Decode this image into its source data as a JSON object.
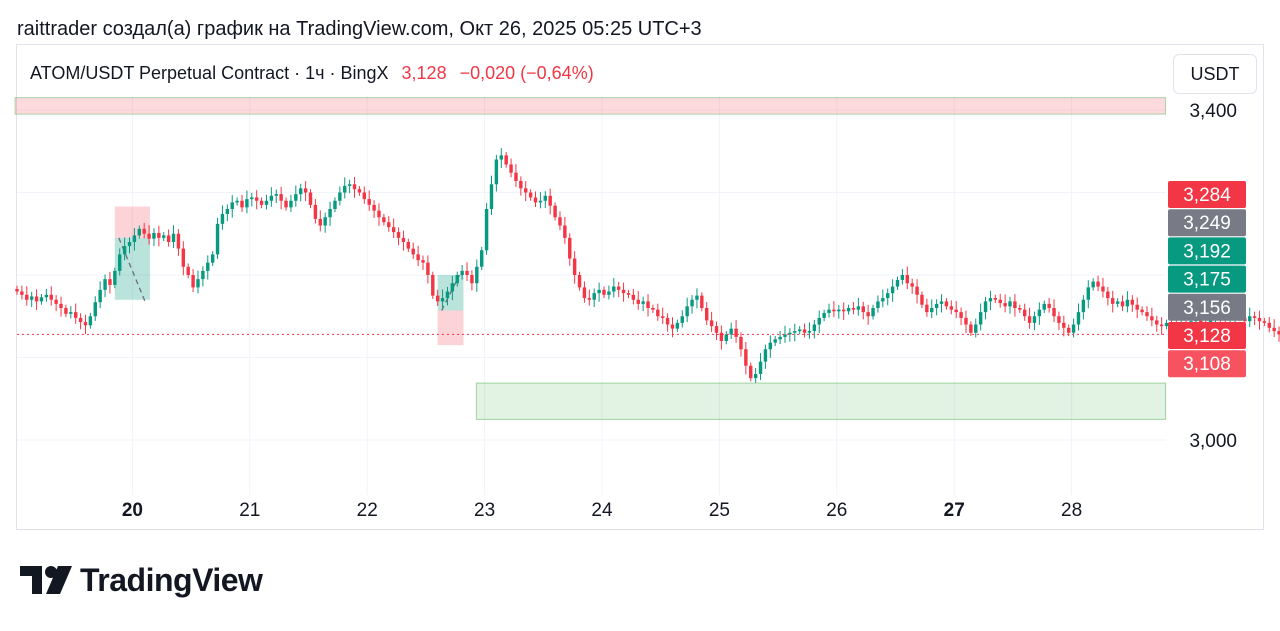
{
  "header": {
    "caption": "raittrader создал(а) график на TradingView.com, Окт 26, 2025 05:25 UTC+3"
  },
  "legend": {
    "symbol": "ATOM/USDT Perpetual Contract · 1ч · BingX",
    "last": "3,128",
    "change": "−0,020 (−0,64%)"
  },
  "currency_button": "USDT",
  "brand": {
    "name": "TradingView"
  },
  "colors": {
    "up": "#089981",
    "down": "#f23645",
    "grid": "#f0f3fa",
    "neutral": "#6a6d78"
  },
  "chart_data": {
    "type": "candlestick",
    "x_ticks": [
      "20",
      "21",
      "22",
      "23",
      "24",
      "25",
      "26",
      "27",
      "28"
    ],
    "x_ticks_bold": [
      "20",
      "27"
    ],
    "y_ticks": [
      "3,400",
      "3,000"
    ],
    "ylim": [
      2.93,
      3.48
    ],
    "price_tags": [
      {
        "value": 3.284,
        "label": "3,284",
        "color": "#f23645"
      },
      {
        "value": 3.249,
        "label": "3,249",
        "color": "#787b86"
      },
      {
        "value": 3.192,
        "label": "3,192",
        "color": "#089981"
      },
      {
        "value": 3.175,
        "label": "3,175",
        "color": "#089981"
      },
      {
        "value": 3.156,
        "label": "3,156",
        "color": "#787b86"
      },
      {
        "value": 3.128,
        "label": "3,128",
        "color": "#f23645"
      },
      {
        "value": 3.108,
        "label": "3,108",
        "color": "#f7525f"
      }
    ],
    "zones": [
      {
        "name": "supply-zone",
        "from_day": 19.0,
        "to_day": 28.8,
        "low": 3.395,
        "high": 3.415,
        "color": "red"
      },
      {
        "name": "demand-zone",
        "from_day": 22.93,
        "to_day": 28.8,
        "low": 3.025,
        "high": 3.069,
        "color": "green"
      }
    ],
    "position_boxes": [
      {
        "name": "short-position-1",
        "from_day": 19.85,
        "to_day": 20.15,
        "entry": 3.245,
        "stop": 3.283,
        "target": 3.17
      },
      {
        "name": "long-position-2",
        "from_day": 22.6,
        "to_day": 22.82,
        "entry": 3.157,
        "stop": 3.115,
        "target": 3.2
      }
    ],
    "last_price": 3.128,
    "candles_start_day": 19.0,
    "candle_interval_hours": 1,
    "close": [
      3.18,
      3.176,
      3.17,
      3.174,
      3.168,
      3.173,
      3.176,
      3.17,
      3.165,
      3.16,
      3.153,
      3.155,
      3.148,
      3.143,
      3.139,
      3.15,
      3.167,
      3.182,
      3.195,
      3.188,
      3.205,
      3.225,
      3.235,
      3.24,
      3.248,
      3.256,
      3.25,
      3.244,
      3.251,
      3.245,
      3.248,
      3.24,
      3.25,
      3.232,
      3.21,
      3.2,
      3.185,
      3.195,
      3.205,
      3.215,
      3.225,
      3.262,
      3.274,
      3.28,
      3.288,
      3.29,
      3.282,
      3.292,
      3.294,
      3.29,
      3.285,
      3.29,
      3.296,
      3.298,
      3.29,
      3.282,
      3.29,
      3.298,
      3.305,
      3.3,
      3.285,
      3.268,
      3.26,
      3.27,
      3.28,
      3.29,
      3.3,
      3.308,
      3.31,
      3.304,
      3.3,
      3.292,
      3.285,
      3.278,
      3.27,
      3.264,
      3.258,
      3.252,
      3.245,
      3.24,
      3.232,
      3.225,
      3.218,
      3.215,
      3.2,
      3.175,
      3.168,
      3.172,
      3.18,
      3.19,
      3.2,
      3.205,
      3.2,
      3.19,
      3.21,
      3.23,
      3.28,
      3.31,
      3.34,
      3.345,
      3.334,
      3.324,
      3.314,
      3.305,
      3.3,
      3.294,
      3.288,
      3.29,
      3.296,
      3.284,
      3.27,
      3.26,
      3.245,
      3.22,
      3.2,
      3.185,
      3.172,
      3.17,
      3.178,
      3.182,
      3.176,
      3.18,
      3.186,
      3.182,
      3.178,
      3.176,
      3.17,
      3.165,
      3.168,
      3.16,
      3.158,
      3.15,
      3.148,
      3.14,
      3.135,
      3.142,
      3.15,
      3.162,
      3.17,
      3.175,
      3.16,
      3.145,
      3.138,
      3.13,
      3.12,
      3.128,
      3.135,
      3.125,
      3.11,
      3.09,
      3.075,
      3.08,
      3.095,
      3.11,
      3.118,
      3.122,
      3.125,
      3.128,
      3.13,
      3.132,
      3.134,
      3.13,
      3.132,
      3.14,
      3.148,
      3.154,
      3.158,
      3.156,
      3.158,
      3.156,
      3.16,
      3.158,
      3.162,
      3.155,
      3.15,
      3.16,
      3.168,
      3.172,
      3.178,
      3.186,
      3.194,
      3.2,
      3.19,
      3.186,
      3.176,
      3.164,
      3.155,
      3.16,
      3.165,
      3.168,
      3.162,
      3.158,
      3.155,
      3.148,
      3.14,
      3.13,
      3.14,
      3.155,
      3.168,
      3.172,
      3.17,
      3.166,
      3.162,
      3.168,
      3.16,
      3.158,
      3.15,
      3.142,
      3.15,
      3.158,
      3.165,
      3.16,
      3.15,
      3.142,
      3.136,
      3.13,
      3.14,
      3.155,
      3.17,
      3.185,
      3.192,
      3.186,
      3.18,
      3.172,
      3.165,
      3.168,
      3.162,
      3.17,
      3.164,
      3.158,
      3.155,
      3.15,
      3.145,
      3.14,
      3.138,
      3.142,
      3.14,
      3.136,
      3.14,
      3.138,
      3.144,
      3.146,
      3.142,
      3.14,
      3.145,
      3.15,
      3.148,
      3.146,
      3.152,
      3.154,
      3.148,
      3.144,
      3.15,
      3.148,
      3.144,
      3.142,
      3.136,
      3.132,
      3.128
    ]
  }
}
